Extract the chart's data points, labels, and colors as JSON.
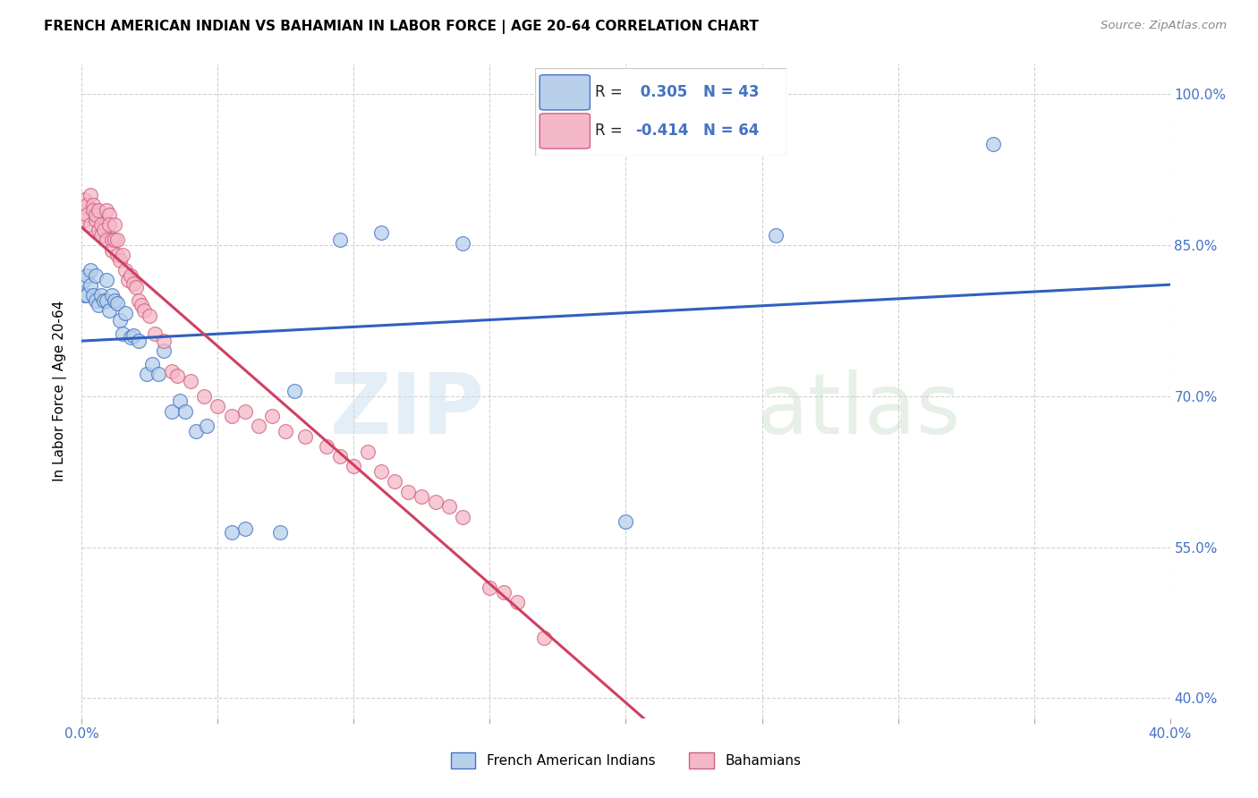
{
  "title": "FRENCH AMERICAN INDIAN VS BAHAMIAN IN LABOR FORCE | AGE 20-64 CORRELATION CHART",
  "source": "Source: ZipAtlas.com",
  "ylabel": "In Labor Force | Age 20-64",
  "xmin": 0.0,
  "xmax": 0.4,
  "ymin": 0.38,
  "ymax": 1.03,
  "r_blue": 0.305,
  "n_blue": 43,
  "r_pink": -0.414,
  "n_pink": 64,
  "blue_fill": "#b8d0ea",
  "blue_edge": "#4472c4",
  "pink_fill": "#f4b8c8",
  "pink_edge": "#d06080",
  "blue_line": "#3060c0",
  "pink_line": "#d04060",
  "legend_label_blue": "French American Indians",
  "legend_label_pink": "Bahamians",
  "blue_x": [
    0.001,
    0.001,
    0.002,
    0.002,
    0.003,
    0.003,
    0.004,
    0.005,
    0.005,
    0.006,
    0.007,
    0.008,
    0.009,
    0.009,
    0.01,
    0.011,
    0.012,
    0.013,
    0.014,
    0.015,
    0.016,
    0.018,
    0.019,
    0.021,
    0.024,
    0.026,
    0.028,
    0.03,
    0.033,
    0.036,
    0.038,
    0.042,
    0.046,
    0.055,
    0.06,
    0.073,
    0.078,
    0.095,
    0.11,
    0.14,
    0.2,
    0.255,
    0.335
  ],
  "blue_y": [
    0.8,
    0.815,
    0.8,
    0.82,
    0.825,
    0.81,
    0.8,
    0.82,
    0.795,
    0.79,
    0.8,
    0.795,
    0.815,
    0.795,
    0.785,
    0.8,
    0.795,
    0.792,
    0.775,
    0.762,
    0.782,
    0.758,
    0.76,
    0.755,
    0.722,
    0.732,
    0.722,
    0.745,
    0.685,
    0.695,
    0.685,
    0.665,
    0.67,
    0.565,
    0.568,
    0.565,
    0.705,
    0.855,
    0.862,
    0.852,
    0.575,
    0.86,
    0.95
  ],
  "pink_x": [
    0.001,
    0.001,
    0.002,
    0.002,
    0.003,
    0.003,
    0.004,
    0.004,
    0.005,
    0.005,
    0.006,
    0.006,
    0.007,
    0.007,
    0.008,
    0.009,
    0.009,
    0.01,
    0.01,
    0.011,
    0.011,
    0.012,
    0.012,
    0.013,
    0.013,
    0.014,
    0.015,
    0.016,
    0.017,
    0.018,
    0.019,
    0.02,
    0.021,
    0.022,
    0.023,
    0.025,
    0.027,
    0.03,
    0.033,
    0.035,
    0.04,
    0.045,
    0.05,
    0.055,
    0.06,
    0.065,
    0.07,
    0.075,
    0.082,
    0.09,
    0.095,
    0.1,
    0.105,
    0.11,
    0.115,
    0.12,
    0.125,
    0.13,
    0.135,
    0.14,
    0.15,
    0.155,
    0.16,
    0.17
  ],
  "pink_y": [
    0.895,
    0.875,
    0.89,
    0.88,
    0.87,
    0.9,
    0.89,
    0.885,
    0.875,
    0.88,
    0.865,
    0.885,
    0.87,
    0.86,
    0.865,
    0.855,
    0.885,
    0.88,
    0.87,
    0.855,
    0.845,
    0.87,
    0.855,
    0.855,
    0.84,
    0.835,
    0.84,
    0.825,
    0.815,
    0.82,
    0.812,
    0.808,
    0.795,
    0.79,
    0.785,
    0.78,
    0.762,
    0.755,
    0.725,
    0.72,
    0.715,
    0.7,
    0.69,
    0.68,
    0.685,
    0.67,
    0.68,
    0.665,
    0.66,
    0.65,
    0.64,
    0.63,
    0.645,
    0.625,
    0.615,
    0.605,
    0.6,
    0.595,
    0.59,
    0.58,
    0.51,
    0.505,
    0.495,
    0.46
  ]
}
